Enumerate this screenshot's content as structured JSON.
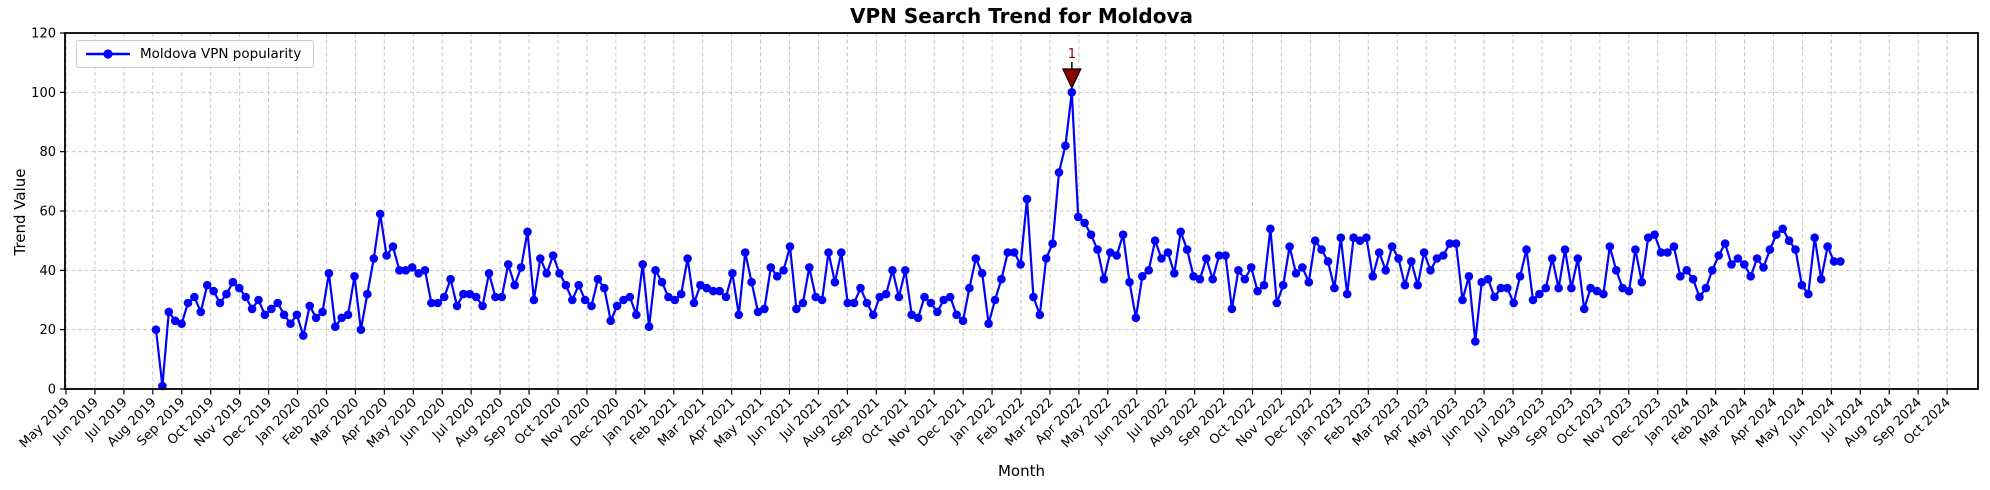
{
  "chart_data": {
    "type": "line",
    "title": "VPN Search Trend for Moldova",
    "xlabel": "Month",
    "ylabel": "Trend Value",
    "ylim": [
      0,
      120
    ],
    "yticks": [
      0,
      20,
      40,
      60,
      80,
      100,
      120
    ],
    "grid": "dashed both axes",
    "legend_position": "upper-left",
    "colors": {
      "line": "#0000ff",
      "annotation": "#8b0000",
      "grid": "#c9c9c9",
      "axis": "#000000"
    },
    "x_tick_labels": [
      "May 2019",
      "Jun 2019",
      "Jul 2019",
      "Aug 2019",
      "Sep 2019",
      "Oct 2019",
      "Nov 2019",
      "Dec 2019",
      "Jan 2020",
      "Feb 2020",
      "Mar 2020",
      "Apr 2020",
      "May 2020",
      "Jun 2020",
      "Jul 2020",
      "Aug 2020",
      "Sep 2020",
      "Oct 2020",
      "Nov 2020",
      "Dec 2020",
      "Jan 2021",
      "Feb 2021",
      "Mar 2021",
      "Apr 2021",
      "May 2021",
      "Jun 2021",
      "Jul 2021",
      "Aug 2021",
      "Sep 2021",
      "Oct 2021",
      "Nov 2021",
      "Dec 2021",
      "Jan 2022",
      "Feb 2022",
      "Mar 2022",
      "Apr 2022",
      "May 2022",
      "Jun 2022",
      "Jul 2022",
      "Aug 2022",
      "Sep 2022",
      "Oct 2022",
      "Nov 2022",
      "Dec 2022",
      "Jan 2023",
      "Feb 2023",
      "Mar 2023",
      "Apr 2023",
      "May 2023",
      "Jun 2023",
      "Jul 2023",
      "Aug 2023",
      "Sep 2023",
      "Oct 2023",
      "Nov 2023",
      "Dec 2023",
      "Jan 2024",
      "Feb 2024",
      "Mar 2024",
      "Apr 2024",
      "May 2024",
      "Jun 2024",
      "Jul 2024",
      "Aug 2024",
      "Sep 2024",
      "Oct 2024"
    ],
    "series": [
      {
        "name": "Moldova VPN popularity",
        "marker": "circle",
        "frequency": "weekly",
        "start_month_index": 3.11,
        "month_step": 0.2213,
        "values": [
          20,
          1,
          26,
          23,
          22,
          29,
          31,
          26,
          35,
          33,
          29,
          32,
          36,
          34,
          31,
          27,
          30,
          25,
          27,
          29,
          25,
          22,
          25,
          18,
          28,
          24,
          26,
          39,
          21,
          24,
          25,
          38,
          20,
          32,
          44,
          59,
          45,
          48,
          40,
          40,
          41,
          39,
          40,
          29,
          29,
          31,
          37,
          28,
          32,
          32,
          31,
          28,
          39,
          31,
          31,
          42,
          35,
          41,
          53,
          30,
          44,
          39,
          45,
          39,
          35,
          30,
          35,
          30,
          28,
          37,
          34,
          23,
          28,
          30,
          31,
          25,
          42,
          21,
          40,
          36,
          31,
          30,
          32,
          44,
          29,
          35,
          34,
          33,
          33,
          31,
          39,
          25,
          46,
          36,
          26,
          27,
          41,
          38,
          40,
          48,
          27,
          29,
          41,
          31,
          30,
          46,
          36,
          46,
          29,
          29,
          34,
          29,
          25,
          31,
          32,
          40,
          31,
          40,
          25,
          24,
          31,
          29,
          26,
          30,
          31,
          25,
          23,
          34,
          44,
          39,
          22,
          30,
          37,
          46,
          46,
          42,
          64,
          31,
          25,
          44,
          49,
          73,
          82,
          100,
          58,
          56,
          52,
          47,
          37,
          46,
          45,
          52,
          36,
          24,
          38,
          40,
          50,
          44,
          46,
          39,
          53,
          47,
          38,
          37,
          44,
          37,
          45,
          45,
          27,
          40,
          37,
          41,
          33,
          35,
          54,
          29,
          35,
          48,
          39,
          41,
          36,
          50,
          47,
          43,
          34,
          51,
          32,
          51,
          50,
          51,
          38,
          46,
          40,
          48,
          44,
          35,
          43,
          35,
          46,
          40,
          44,
          45,
          49,
          49,
          30,
          38,
          16,
          36,
          37,
          31,
          34,
          34,
          29,
          38,
          47,
          30,
          32,
          34,
          44,
          34,
          47,
          34,
          44,
          27,
          34,
          33,
          32,
          48,
          40,
          34,
          33,
          47,
          36,
          51,
          52,
          46,
          46,
          48,
          38,
          40,
          37,
          31,
          34,
          40,
          45,
          49,
          42,
          44,
          42,
          38,
          44,
          41,
          47,
          52,
          54,
          50,
          47,
          35,
          32,
          51,
          37,
          48,
          43,
          43
        ]
      }
    ],
    "annotations": [
      {
        "text": "1",
        "point_index": 143,
        "value": 100,
        "marker": "triangle-down",
        "color": "#8b0000"
      }
    ]
  }
}
